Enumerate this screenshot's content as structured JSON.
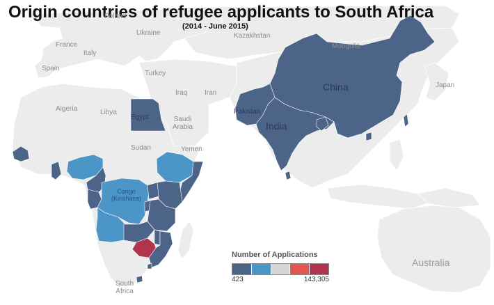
{
  "title": "Origin countries of refugee applicants to South Africa",
  "subtitle": "(2014 - June 2015)",
  "colors": {
    "ocean": "#ffffff",
    "land": "#ececec",
    "border": "#ffffff",
    "high": "#b0344e",
    "dark_blue": "#4d6489",
    "mid_blue": "#4c95c7"
  },
  "legend": {
    "title": "Number of Applications",
    "min_label": "423",
    "max_label": "143,305",
    "swatches": [
      "#4d6489",
      "#4c95c7",
      "#d6d6d6",
      "#e0584f",
      "#b0344e"
    ]
  },
  "map_labels": {
    "poland": "Poland",
    "ukraine": "Ukraine",
    "kazakhstan": "Kazakhstan",
    "mongolia": "Mongolia",
    "france": "France",
    "italy": "Italy",
    "spain": "Spain",
    "turkey": "Turkey",
    "iraq": "Iraq",
    "iran": "Iran",
    "japan": "Japan",
    "china": "China",
    "algeria": "Algeria",
    "libya": "Libya",
    "egypt": "Egypt",
    "saudi_arabia": "Saudi\nArabia",
    "pakistan": "Pakistan",
    "india": "India",
    "sudan": "Sudan",
    "yemen": "Yemen",
    "congo": "Congo\n(Kinshasa)",
    "south_africa": "South\nAfrica",
    "australia": "Australia"
  },
  "highlighted_countries": [
    {
      "name": "China",
      "category": "dark_blue"
    },
    {
      "name": "India",
      "category": "dark_blue"
    },
    {
      "name": "Pakistan",
      "category": "dark_blue"
    },
    {
      "name": "Bangladesh",
      "category": "dark_blue"
    },
    {
      "name": "Egypt",
      "category": "dark_blue"
    },
    {
      "name": "Senegal",
      "category": "dark_blue"
    },
    {
      "name": "Ghana",
      "category": "dark_blue"
    },
    {
      "name": "Nigeria",
      "category": "mid_blue"
    },
    {
      "name": "Cameroon",
      "category": "dark_blue"
    },
    {
      "name": "Ethiopia",
      "category": "mid_blue"
    },
    {
      "name": "Somalia",
      "category": "dark_blue"
    },
    {
      "name": "Congo (Kinshasa)",
      "category": "mid_blue"
    },
    {
      "name": "Kenya",
      "category": "dark_blue"
    },
    {
      "name": "Uganda",
      "category": "dark_blue"
    },
    {
      "name": "Rwanda",
      "category": "dark_blue"
    },
    {
      "name": "Burundi",
      "category": "dark_blue"
    },
    {
      "name": "Tanzania",
      "category": "dark_blue"
    },
    {
      "name": "Malawi",
      "category": "dark_blue"
    },
    {
      "name": "Mozambique",
      "category": "dark_blue"
    },
    {
      "name": "Zambia",
      "category": "dark_blue"
    },
    {
      "name": "Angola",
      "category": "mid_blue"
    },
    {
      "name": "Congo (Brazzaville)",
      "category": "dark_blue"
    },
    {
      "name": "Zimbabwe",
      "category": "high"
    },
    {
      "name": "Lesotho",
      "category": "dark_blue"
    },
    {
      "name": "Swaziland",
      "category": "dark_blue"
    }
  ]
}
